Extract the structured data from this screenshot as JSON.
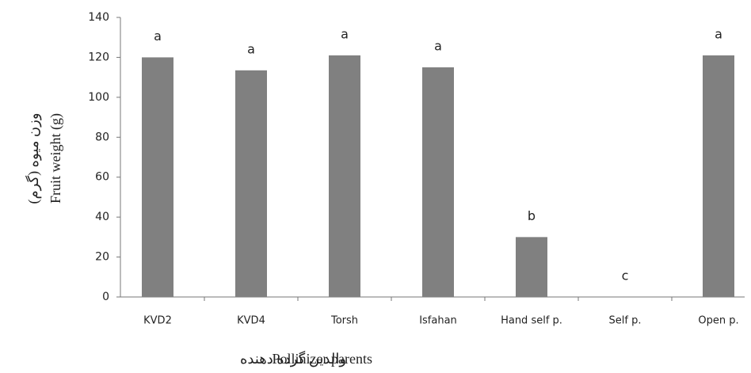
{
  "chart_data": {
    "type": "bar",
    "y_label": "Fruit weight (g)",
    "y_label_fa": "وزن میوه (گرم)",
    "x_label": "Pollinizer parents",
    "x_label_fa": "والدین گرده دهنده",
    "categories": [
      "KVD2",
      "KVD4",
      "Torsh",
      "Isfahan",
      "Hand self p.",
      "Self p.",
      "Open p."
    ],
    "values": [
      120,
      113.5,
      121,
      115,
      30,
      0,
      121
    ],
    "annotations": [
      "a",
      "a",
      "a",
      "a",
      "b",
      "c",
      "a"
    ],
    "color": "#808080",
    "ylim": [
      0,
      140
    ],
    "yticks": [
      0,
      20,
      40,
      60,
      80,
      100,
      120,
      140
    ],
    "grid": false
  }
}
